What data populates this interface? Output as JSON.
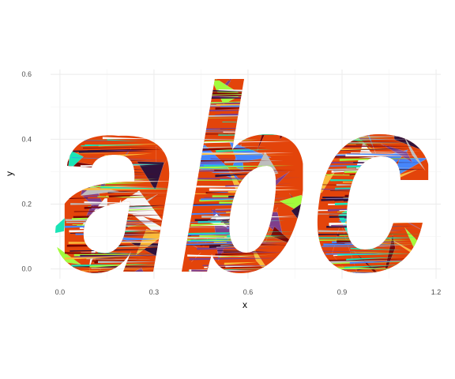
{
  "chart_data": {
    "type": "area",
    "xlabel": "x",
    "ylabel": "y",
    "xlim": [
      -0.03,
      1.215
    ],
    "ylim": [
      -0.03,
      0.615
    ],
    "x_ticks": [
      0.0,
      0.3,
      0.6,
      0.9,
      1.2
    ],
    "x_tick_labels": [
      "0.0",
      "0.3",
      "0.6",
      "0.9",
      "1.2"
    ],
    "y_ticks": [
      0.0,
      0.2,
      0.4,
      0.6
    ],
    "y_tick_labels": [
      "0.0",
      "0.2",
      "0.4",
      "0.6"
    ],
    "grid": true,
    "legend": "none",
    "palette": [
      "#30123b",
      "#4686fb",
      "#1ae4b6",
      "#a2fc3c",
      "#fabb3a",
      "#e3440a",
      "#7a0403",
      "#bdbdbd",
      "#7f3f8c",
      "#f7f7f7"
    ],
    "letters": [
      {
        "glyph": "a",
        "x_range": [
          0.03,
          0.36
        ],
        "y_range": [
          0.0,
          0.42
        ]
      },
      {
        "glyph": "b",
        "x_range": [
          0.4,
          0.76
        ],
        "y_range": [
          0.0,
          0.59
        ]
      },
      {
        "glyph": "c",
        "x_range": [
          0.82,
          1.16
        ],
        "y_range": [
          -0.01,
          0.42
        ]
      }
    ]
  }
}
